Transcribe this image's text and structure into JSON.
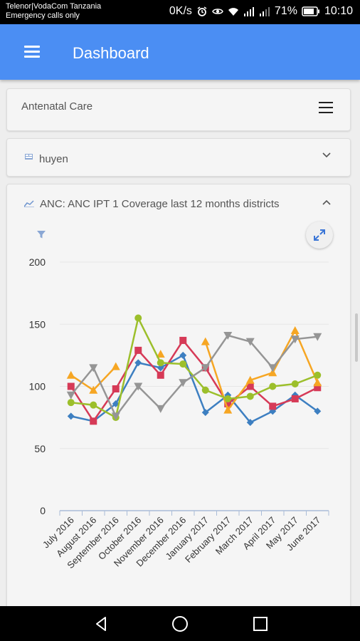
{
  "status_bar": {
    "carrier": "Telenor|VodaCom Tanzania",
    "carrier_sub": "Emergency calls only",
    "speed": "0K/s",
    "battery": "71%",
    "time": "10:10"
  },
  "app_bar": {
    "title": "Dashboard"
  },
  "dashboard_card": {
    "title": "Antenatal Care"
  },
  "org_unit_card": {
    "label": "huyen"
  },
  "chart_card": {
    "title": "ANC: ANC IPT 1 Coverage last 12 months districts"
  },
  "chart_data": {
    "type": "line",
    "categories": [
      "July 2016",
      "August 2016",
      "September 2016",
      "October 2016",
      "November 2016",
      "December 2016",
      "January 2017",
      "February 2017",
      "March 2017",
      "April 2017",
      "May 2017",
      "June 2017"
    ],
    "ylim": [
      0,
      200
    ],
    "yticks": [
      0,
      50,
      100,
      150,
      200
    ],
    "grid": true,
    "series": [
      {
        "color": "#3d7fc1",
        "marker": "diamond",
        "values": [
          76,
          72,
          86,
          119,
          115,
          125,
          79,
          93,
          71,
          80,
          93,
          80
        ]
      },
      {
        "color": "#d63a57",
        "marker": "square",
        "values": [
          100,
          72,
          98,
          129,
          109,
          137,
          115,
          86,
          100,
          84,
          90,
          99
        ]
      },
      {
        "color": "#f6a623",
        "marker": "triangle",
        "values": [
          109,
          97,
          116,
          null,
          126,
          null,
          136,
          81,
          105,
          111,
          145,
          103
        ]
      },
      {
        "color": "#9cbf2b",
        "marker": "circle",
        "values": [
          87,
          85,
          75,
          155,
          119,
          118,
          97,
          90,
          92,
          100,
          102,
          109
        ]
      },
      {
        "color": "#959595",
        "marker": "triangle-down",
        "values": [
          93,
          115,
          76,
          100,
          82,
          103,
          115,
          141,
          136,
          115,
          138,
          140
        ]
      }
    ]
  }
}
